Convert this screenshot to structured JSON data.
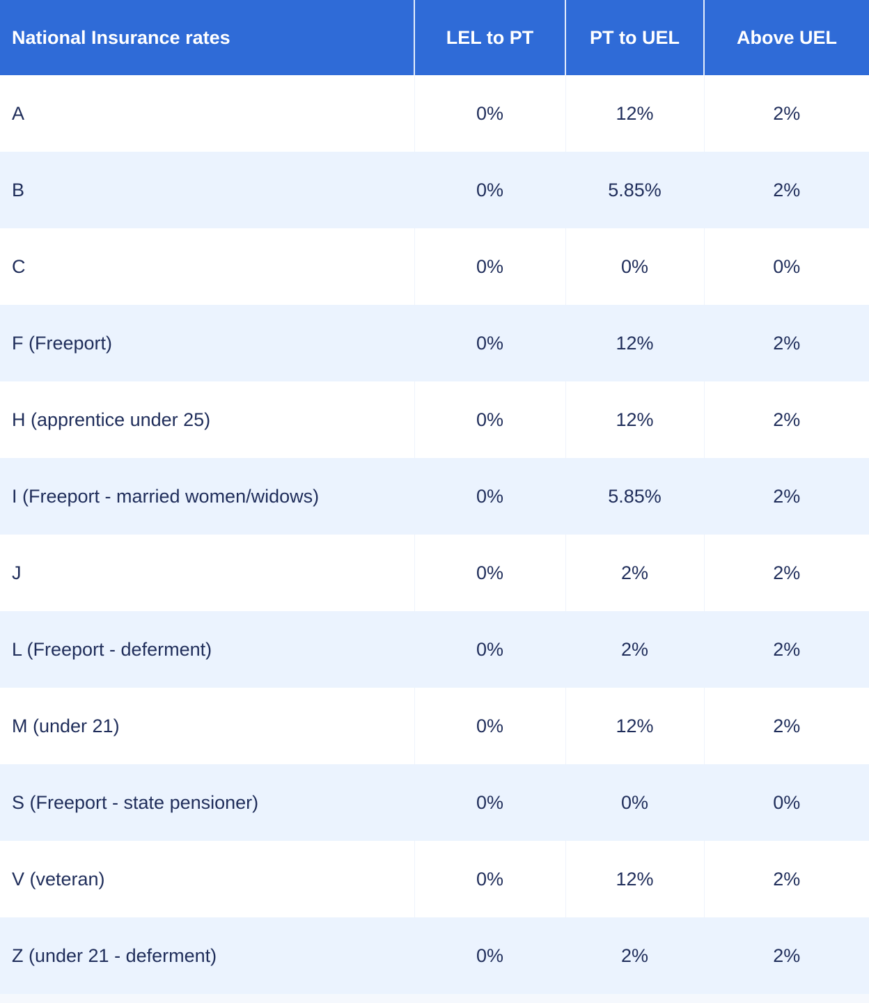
{
  "table": {
    "headers": [
      "National Insurance rates",
      "LEL to PT",
      "PT to UEL",
      "Above UEL"
    ],
    "rows": [
      [
        "A",
        "0%",
        "12%",
        "2%"
      ],
      [
        "B",
        "0%",
        "5.85%",
        "2%"
      ],
      [
        "C",
        "0%",
        "0%",
        "0%"
      ],
      [
        "F (Freeport)",
        "0%",
        "12%",
        "2%"
      ],
      [
        "H (apprentice under 25)",
        "0%",
        "12%",
        "2%"
      ],
      [
        "I (Freeport - married women/widows)",
        "0%",
        "5.85%",
        "2%"
      ],
      [
        "J",
        "0%",
        "2%",
        "2%"
      ],
      [
        "L (Freeport - deferment)",
        "0%",
        "2%",
        "2%"
      ],
      [
        "M (under 21)",
        "0%",
        "12%",
        "2%"
      ],
      [
        "S (Freeport - state pensioner)",
        "0%",
        "0%",
        "0%"
      ],
      [
        "V (veteran)",
        "0%",
        "12%",
        "2%"
      ],
      [
        "Z (under 21 - deferment)",
        "0%",
        "2%",
        "2%"
      ]
    ]
  },
  "colors": {
    "header_bg": "#2f6bd7",
    "header_text": "#ffffff",
    "row_alt_bg": "#ebf3fe",
    "body_text": "#1f2d5a"
  }
}
